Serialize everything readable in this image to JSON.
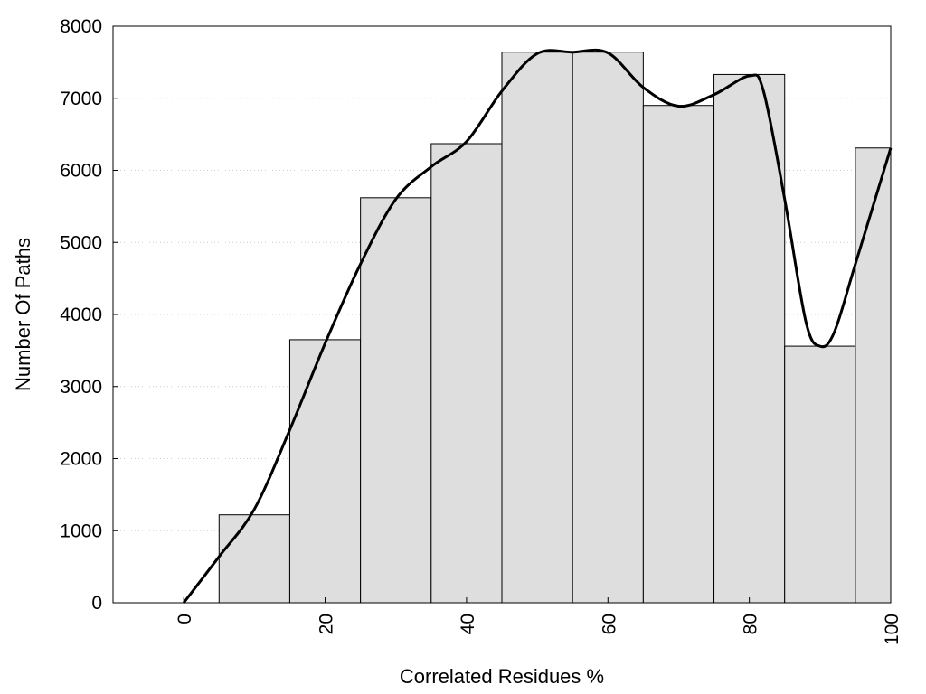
{
  "chart_data": {
    "type": "bar",
    "xlabel": "Correlated Residues %",
    "ylabel": "Number Of Paths",
    "xlim": [
      -10,
      100
    ],
    "ylim": [
      0,
      8000
    ],
    "x_ticks": [
      "0",
      "20",
      "40",
      "60",
      "80",
      "100"
    ],
    "y_ticks": [
      "0",
      "1000",
      "2000",
      "3000",
      "4000",
      "5000",
      "6000",
      "7000",
      "8000"
    ],
    "bin_width": 10,
    "bins": [
      {
        "x": 10,
        "value": 1220
      },
      {
        "x": 20,
        "value": 3650
      },
      {
        "x": 30,
        "value": 5620
      },
      {
        "x": 40,
        "value": 6370
      },
      {
        "x": 50,
        "value": 7640
      },
      {
        "x": 60,
        "value": 7640
      },
      {
        "x": 70,
        "value": 6900
      },
      {
        "x": 80,
        "value": 7330
      },
      {
        "x": 90,
        "value": 3560
      },
      {
        "x": 100,
        "value": 6310
      }
    ],
    "curve": {
      "x": [
        0,
        5,
        10,
        15,
        20,
        25,
        30,
        35,
        40,
        45,
        50,
        55,
        60,
        65,
        70,
        75,
        80,
        82,
        85,
        88,
        90,
        92,
        95,
        100
      ],
      "y": [
        0,
        640,
        1300,
        2400,
        3600,
        4700,
        5600,
        6050,
        6400,
        7100,
        7620,
        7640,
        7630,
        7150,
        6890,
        7050,
        7310,
        7100,
        5600,
        3900,
        3560,
        3750,
        4700,
        6310
      ]
    },
    "grid": "horizontal dotted",
    "colors": {
      "bar_fill": "#dedede",
      "bar_stroke": "#000000",
      "curve": "#000000",
      "grid": "#cccccc"
    }
  }
}
